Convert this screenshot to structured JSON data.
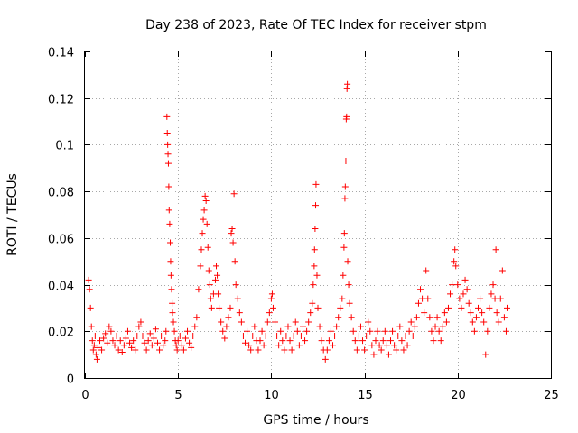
{
  "chart_data": {
    "type": "scatter",
    "title": "Day 238 of 2023, Rate Of TEC Index for receiver stpm",
    "xlabel": "GPS time / hours",
    "ylabel": "ROTI / TECUs",
    "xlim": [
      0,
      25
    ],
    "ylim": [
      0,
      0.14
    ],
    "xticks": [
      0,
      5,
      10,
      15,
      20,
      25
    ],
    "xtick_labels": [
      "0",
      "5",
      "10",
      "15",
      "20",
      "25"
    ],
    "yticks": [
      0,
      0.02,
      0.04,
      0.06,
      0.08,
      0.1,
      0.12,
      0.14
    ],
    "ytick_labels": [
      "0",
      "0.02",
      "0.04",
      "0.06",
      "0.08",
      "0.1",
      "0.12",
      "0.14"
    ],
    "grid": true,
    "marker": "+",
    "marker_color": "#ff0000",
    "series": [
      {
        "name": "ROTI",
        "points": [
          [
            0.2,
            0.042
          ],
          [
            0.25,
            0.038
          ],
          [
            0.3,
            0.03
          ],
          [
            0.35,
            0.022
          ],
          [
            0.4,
            0.016
          ],
          [
            0.45,
            0.012
          ],
          [
            0.5,
            0.014
          ],
          [
            0.55,
            0.018
          ],
          [
            0.6,
            0.01
          ],
          [
            0.65,
            0.008
          ],
          [
            0.7,
            0.013
          ],
          [
            0.8,
            0.016
          ],
          [
            0.9,
            0.012
          ],
          [
            1.0,
            0.017
          ],
          [
            1.1,
            0.019
          ],
          [
            1.2,
            0.015
          ],
          [
            1.3,
            0.022
          ],
          [
            1.4,
            0.02
          ],
          [
            1.5,
            0.016
          ],
          [
            1.6,
            0.014
          ],
          [
            1.7,
            0.018
          ],
          [
            1.8,
            0.012
          ],
          [
            1.9,
            0.016
          ],
          [
            2.0,
            0.011
          ],
          [
            2.1,
            0.014
          ],
          [
            2.2,
            0.017
          ],
          [
            2.3,
            0.02
          ],
          [
            2.4,
            0.015
          ],
          [
            2.5,
            0.013
          ],
          [
            2.6,
            0.016
          ],
          [
            2.7,
            0.012
          ],
          [
            2.8,
            0.018
          ],
          [
            2.9,
            0.022
          ],
          [
            3.0,
            0.024
          ],
          [
            3.1,
            0.018
          ],
          [
            3.2,
            0.015
          ],
          [
            3.3,
            0.012
          ],
          [
            3.4,
            0.016
          ],
          [
            3.5,
            0.019
          ],
          [
            3.6,
            0.014
          ],
          [
            3.7,
            0.017
          ],
          [
            3.8,
            0.021
          ],
          [
            3.9,
            0.015
          ],
          [
            4.0,
            0.012
          ],
          [
            4.1,
            0.018
          ],
          [
            4.2,
            0.014
          ],
          [
            4.3,
            0.016
          ],
          [
            4.35,
            0.02
          ],
          [
            4.4,
            0.112
          ],
          [
            4.42,
            0.105
          ],
          [
            4.44,
            0.1
          ],
          [
            4.46,
            0.096
          ],
          [
            4.48,
            0.092
          ],
          [
            4.5,
            0.082
          ],
          [
            4.52,
            0.072
          ],
          [
            4.55,
            0.066
          ],
          [
            4.58,
            0.058
          ],
          [
            4.6,
            0.05
          ],
          [
            4.62,
            0.044
          ],
          [
            4.65,
            0.038
          ],
          [
            4.68,
            0.032
          ],
          [
            4.7,
            0.028
          ],
          [
            4.75,
            0.024
          ],
          [
            4.8,
            0.02
          ],
          [
            4.85,
            0.016
          ],
          [
            4.9,
            0.014
          ],
          [
            4.95,
            0.012
          ],
          [
            5.0,
            0.016
          ],
          [
            5.1,
            0.018
          ],
          [
            5.2,
            0.014
          ],
          [
            5.3,
            0.012
          ],
          [
            5.4,
            0.017
          ],
          [
            5.5,
            0.02
          ],
          [
            5.6,
            0.015
          ],
          [
            5.7,
            0.013
          ],
          [
            5.8,
            0.018
          ],
          [
            5.9,
            0.022
          ],
          [
            6.0,
            0.026
          ],
          [
            6.1,
            0.038
          ],
          [
            6.2,
            0.048
          ],
          [
            6.25,
            0.055
          ],
          [
            6.3,
            0.062
          ],
          [
            6.35,
            0.068
          ],
          [
            6.4,
            0.072
          ],
          [
            6.45,
            0.078
          ],
          [
            6.5,
            0.076
          ],
          [
            6.55,
            0.066
          ],
          [
            6.6,
            0.056
          ],
          [
            6.65,
            0.046
          ],
          [
            6.7,
            0.04
          ],
          [
            6.75,
            0.034
          ],
          [
            6.8,
            0.03
          ],
          [
            6.9,
            0.036
          ],
          [
            7.0,
            0.042
          ],
          [
            7.05,
            0.048
          ],
          [
            7.1,
            0.044
          ],
          [
            7.15,
            0.036
          ],
          [
            7.2,
            0.03
          ],
          [
            7.3,
            0.024
          ],
          [
            7.4,
            0.02
          ],
          [
            7.5,
            0.017
          ],
          [
            7.6,
            0.022
          ],
          [
            7.7,
            0.026
          ],
          [
            7.8,
            0.03
          ],
          [
            7.85,
            0.062
          ],
          [
            7.9,
            0.064
          ],
          [
            7.95,
            0.058
          ],
          [
            8.0,
            0.079
          ],
          [
            8.05,
            0.05
          ],
          [
            8.1,
            0.04
          ],
          [
            8.2,
            0.034
          ],
          [
            8.3,
            0.028
          ],
          [
            8.4,
            0.024
          ],
          [
            8.5,
            0.018
          ],
          [
            8.6,
            0.015
          ],
          [
            8.7,
            0.02
          ],
          [
            8.8,
            0.014
          ],
          [
            8.9,
            0.012
          ],
          [
            9.0,
            0.018
          ],
          [
            9.1,
            0.022
          ],
          [
            9.2,
            0.016
          ],
          [
            9.3,
            0.012
          ],
          [
            9.4,
            0.016
          ],
          [
            9.5,
            0.02
          ],
          [
            9.6,
            0.014
          ],
          [
            9.7,
            0.018
          ],
          [
            9.8,
            0.024
          ],
          [
            9.9,
            0.028
          ],
          [
            10.0,
            0.034
          ],
          [
            10.05,
            0.036
          ],
          [
            10.1,
            0.03
          ],
          [
            10.2,
            0.024
          ],
          [
            10.3,
            0.018
          ],
          [
            10.4,
            0.014
          ],
          [
            10.5,
            0.02
          ],
          [
            10.6,
            0.016
          ],
          [
            10.7,
            0.012
          ],
          [
            10.8,
            0.018
          ],
          [
            10.9,
            0.022
          ],
          [
            11.0,
            0.016
          ],
          [
            11.1,
            0.012
          ],
          [
            11.2,
            0.018
          ],
          [
            11.3,
            0.024
          ],
          [
            11.4,
            0.02
          ],
          [
            11.5,
            0.014
          ],
          [
            11.6,
            0.018
          ],
          [
            11.7,
            0.022
          ],
          [
            11.8,
            0.016
          ],
          [
            11.9,
            0.02
          ],
          [
            12.0,
            0.024
          ],
          [
            12.1,
            0.028
          ],
          [
            12.2,
            0.032
          ],
          [
            12.25,
            0.04
          ],
          [
            12.3,
            0.048
          ],
          [
            12.32,
            0.055
          ],
          [
            12.35,
            0.064
          ],
          [
            12.38,
            0.074
          ],
          [
            12.4,
            0.083
          ],
          [
            12.45,
            0.044
          ],
          [
            12.5,
            0.03
          ],
          [
            12.6,
            0.022
          ],
          [
            12.7,
            0.016
          ],
          [
            12.8,
            0.012
          ],
          [
            12.9,
            0.008
          ],
          [
            13.0,
            0.012
          ],
          [
            13.1,
            0.016
          ],
          [
            13.2,
            0.02
          ],
          [
            13.3,
            0.014
          ],
          [
            13.4,
            0.018
          ],
          [
            13.5,
            0.022
          ],
          [
            13.6,
            0.026
          ],
          [
            13.7,
            0.03
          ],
          [
            13.8,
            0.034
          ],
          [
            13.85,
            0.044
          ],
          [
            13.9,
            0.056
          ],
          [
            13.92,
            0.062
          ],
          [
            13.95,
            0.077
          ],
          [
            13.97,
            0.082
          ],
          [
            14.0,
            0.093
          ],
          [
            14.02,
            0.111
          ],
          [
            14.04,
            0.112
          ],
          [
            14.06,
            0.124
          ],
          [
            14.08,
            0.126
          ],
          [
            14.1,
            0.05
          ],
          [
            14.15,
            0.04
          ],
          [
            14.2,
            0.032
          ],
          [
            14.3,
            0.026
          ],
          [
            14.4,
            0.02
          ],
          [
            14.5,
            0.016
          ],
          [
            14.6,
            0.012
          ],
          [
            14.7,
            0.018
          ],
          [
            14.8,
            0.022
          ],
          [
            14.9,
            0.016
          ],
          [
            15.0,
            0.012
          ],
          [
            15.1,
            0.018
          ],
          [
            15.2,
            0.024
          ],
          [
            15.3,
            0.02
          ],
          [
            15.4,
            0.014
          ],
          [
            15.5,
            0.01
          ],
          [
            15.6,
            0.016
          ],
          [
            15.7,
            0.02
          ],
          [
            15.8,
            0.014
          ],
          [
            15.9,
            0.012
          ],
          [
            16.0,
            0.016
          ],
          [
            16.1,
            0.02
          ],
          [
            16.2,
            0.014
          ],
          [
            16.3,
            0.01
          ],
          [
            16.4,
            0.016
          ],
          [
            16.5,
            0.02
          ],
          [
            16.6,
            0.014
          ],
          [
            16.7,
            0.012
          ],
          [
            16.8,
            0.018
          ],
          [
            16.9,
            0.022
          ],
          [
            17.0,
            0.016
          ],
          [
            17.1,
            0.012
          ],
          [
            17.2,
            0.018
          ],
          [
            17.3,
            0.014
          ],
          [
            17.4,
            0.02
          ],
          [
            17.5,
            0.024
          ],
          [
            17.6,
            0.018
          ],
          [
            17.7,
            0.022
          ],
          [
            17.8,
            0.026
          ],
          [
            17.9,
            0.032
          ],
          [
            18.0,
            0.038
          ],
          [
            18.1,
            0.034
          ],
          [
            18.2,
            0.028
          ],
          [
            18.3,
            0.046
          ],
          [
            18.4,
            0.034
          ],
          [
            18.5,
            0.026
          ],
          [
            18.6,
            0.02
          ],
          [
            18.7,
            0.016
          ],
          [
            18.8,
            0.022
          ],
          [
            18.9,
            0.026
          ],
          [
            19.0,
            0.02
          ],
          [
            19.1,
            0.016
          ],
          [
            19.2,
            0.022
          ],
          [
            19.3,
            0.028
          ],
          [
            19.4,
            0.024
          ],
          [
            19.5,
            0.03
          ],
          [
            19.6,
            0.036
          ],
          [
            19.7,
            0.04
          ],
          [
            19.8,
            0.05
          ],
          [
            19.85,
            0.055
          ],
          [
            19.9,
            0.048
          ],
          [
            20.0,
            0.04
          ],
          [
            20.1,
            0.034
          ],
          [
            20.2,
            0.03
          ],
          [
            20.3,
            0.036
          ],
          [
            20.4,
            0.042
          ],
          [
            20.5,
            0.038
          ],
          [
            20.6,
            0.032
          ],
          [
            20.7,
            0.028
          ],
          [
            20.8,
            0.024
          ],
          [
            20.9,
            0.02
          ],
          [
            21.0,
            0.026
          ],
          [
            21.1,
            0.03
          ],
          [
            21.2,
            0.034
          ],
          [
            21.3,
            0.028
          ],
          [
            21.4,
            0.024
          ],
          [
            21.5,
            0.01
          ],
          [
            21.6,
            0.02
          ],
          [
            21.7,
            0.03
          ],
          [
            21.8,
            0.036
          ],
          [
            21.9,
            0.04
          ],
          [
            22.0,
            0.034
          ],
          [
            22.05,
            0.055
          ],
          [
            22.1,
            0.028
          ],
          [
            22.2,
            0.024
          ],
          [
            22.3,
            0.034
          ],
          [
            22.4,
            0.046
          ],
          [
            22.5,
            0.026
          ],
          [
            22.6,
            0.02
          ],
          [
            22.65,
            0.03
          ]
        ]
      }
    ]
  }
}
